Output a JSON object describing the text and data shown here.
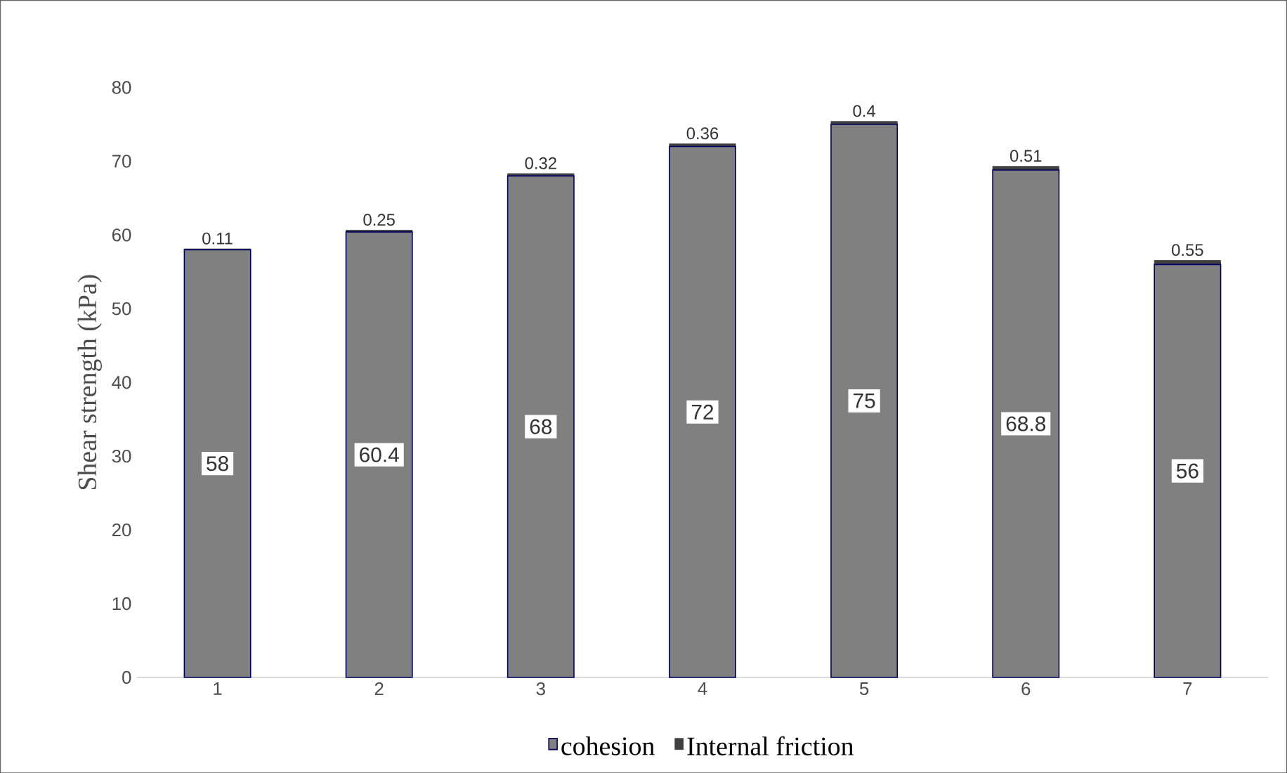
{
  "chart_data": {
    "type": "bar",
    "stacked": true,
    "ylabel": "Shear strength (kPa)",
    "categories": [
      "1",
      "2",
      "3",
      "4",
      "5",
      "6",
      "7"
    ],
    "series": [
      {
        "name": "cohesion",
        "color": "#808080",
        "values": [
          58,
          60.4,
          68,
          72,
          75,
          68.8,
          56
        ],
        "value_labels": [
          "58",
          "60.4",
          "68",
          "72",
          "75",
          "68.8",
          "56"
        ]
      },
      {
        "name": "Internal friction",
        "color": "#404040",
        "values": [
          0.11,
          0.25,
          0.32,
          0.36,
          0.4,
          0.51,
          0.55
        ],
        "value_labels": [
          "0.11",
          "0.25",
          "0.32",
          "0.36",
          "0.4",
          "0.51",
          "0.55"
        ]
      }
    ],
    "ylim": [
      0,
      80
    ],
    "yticks": [
      0,
      10,
      20,
      30,
      40,
      50,
      60,
      70,
      80
    ],
    "legend": "bottom",
    "grid": false
  }
}
